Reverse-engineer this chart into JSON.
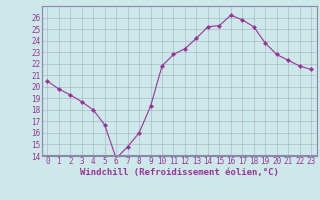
{
  "x": [
    0,
    1,
    2,
    3,
    4,
    5,
    6,
    7,
    8,
    9,
    10,
    11,
    12,
    13,
    14,
    15,
    16,
    17,
    18,
    19,
    20,
    21,
    22,
    23
  ],
  "y": [
    20.5,
    19.8,
    19.3,
    18.7,
    18.0,
    16.7,
    13.8,
    14.8,
    16.0,
    18.3,
    21.8,
    22.8,
    23.3,
    24.2,
    25.2,
    25.3,
    26.2,
    25.8,
    25.2,
    23.8,
    22.8,
    22.3,
    21.8,
    21.5
  ],
  "line_color": "#993399",
  "marker": "D",
  "marker_size": 2.0,
  "bg_color": "#cce8e8",
  "grid_color": "#aabbcc",
  "xlabel": "Windchill (Refroidissement éolien,°C)",
  "ylim": [
    14,
    27
  ],
  "xlim": [
    -0.5,
    23.5
  ],
  "yticks": [
    14,
    15,
    16,
    17,
    18,
    19,
    20,
    21,
    22,
    23,
    24,
    25,
    26
  ],
  "xticks": [
    0,
    1,
    2,
    3,
    4,
    5,
    6,
    7,
    8,
    9,
    10,
    11,
    12,
    13,
    14,
    15,
    16,
    17,
    18,
    19,
    20,
    21,
    22,
    23
  ],
  "tick_label_color": "#993399",
  "tick_label_size": 5.5,
  "xlabel_size": 6.5,
  "border_color": "#8888aa",
  "line_width": 0.8
}
